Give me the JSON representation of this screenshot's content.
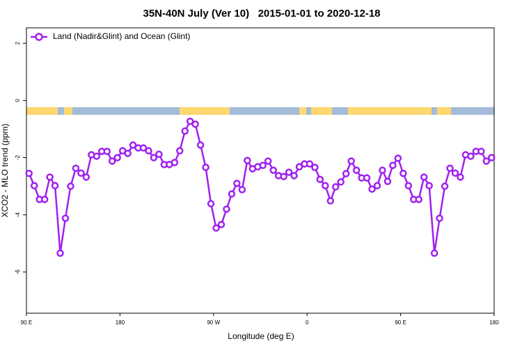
{
  "chart_data": {
    "type": "line",
    "title": "35N-40N July (Ver 10)   2015-01-01 to 2020-12-18",
    "x_label": "Longitude (deg E)",
    "y_label": "XCO2 - MLO trend (ppm)",
    "xlim": [
      90,
      540
    ],
    "xticks": [
      {
        "value": 90,
        "label": "90 E"
      },
      {
        "value": 180,
        "label": "180"
      },
      {
        "value": 270,
        "label": "90 W"
      },
      {
        "value": 360,
        "label": "0"
      },
      {
        "value": 450,
        "label": "90 E"
      },
      {
        "value": 540,
        "label": "180"
      }
    ],
    "ylim": [
      -7.44,
      2.54
    ],
    "yticks": [
      2,
      0,
      -2,
      -4,
      -6
    ],
    "legend": "top-left",
    "x": [
      92.5,
      97.5,
      102.5,
      107.5,
      112.5,
      117.5,
      122.5,
      127.5,
      132.5,
      137.5,
      142.5,
      147.5,
      152.5,
      157.5,
      162.5,
      167.5,
      172.5,
      177.5,
      182.5,
      187.5,
      192.5,
      197.5,
      202.5,
      207.5,
      212.5,
      217.5,
      222.5,
      227.5,
      232.5,
      237.5,
      242.5,
      247.5,
      252.5,
      257.5,
      262.5,
      267.5,
      272.5,
      277.5,
      282.5,
      287.5,
      292.5,
      297.5,
      302.5,
      307.5,
      312.5,
      317.5,
      322.5,
      327.5,
      332.5,
      337.5,
      342.5,
      347.5,
      352.5,
      357.5,
      362.5,
      367.5,
      372.5,
      377.5,
      382.5,
      387.5,
      392.5,
      397.5,
      402.5,
      407.5,
      412.5,
      417.5,
      422.5,
      427.5,
      432.5,
      437.5,
      442.5,
      447.5,
      452.5,
      457.5,
      462.5,
      467.5,
      472.5,
      477.5,
      482.5,
      487.5,
      492.5,
      497.5,
      502.5,
      507.5,
      512.5,
      517.5,
      522.5,
      527.5,
      532.5,
      537.5
    ],
    "series": [
      {
        "name": "Land (Nadir&Glint) and Ocean (Glint)",
        "color": "#a020f0",
        "values": [
          -2.55,
          -2.98,
          -3.46,
          -3.46,
          -2.68,
          -2.98,
          -5.34,
          -4.12,
          -3.0,
          -2.37,
          -2.54,
          -2.68,
          -1.9,
          -1.95,
          -1.78,
          -1.78,
          -2.12,
          -2.0,
          -1.76,
          -1.85,
          -1.56,
          -1.66,
          -1.66,
          -1.76,
          -2.0,
          -1.88,
          -2.24,
          -2.24,
          -2.17,
          -1.76,
          -1.07,
          -0.73,
          -0.83,
          -1.56,
          -2.34,
          -3.61,
          -4.46,
          -4.34,
          -3.8,
          -3.27,
          -2.9,
          -3.12,
          -2.1,
          -2.39,
          -2.32,
          -2.27,
          -2.12,
          -2.44,
          -2.63,
          -2.66,
          -2.51,
          -2.63,
          -2.32,
          -2.22,
          -2.22,
          -2.34,
          -2.76,
          -2.98,
          -3.51,
          -3.02,
          -2.85,
          -2.56,
          -2.12,
          -2.44,
          -2.71,
          -2.71,
          -3.1,
          -2.98,
          -2.44,
          -2.83,
          -2.27,
          -2.02,
          -2.55,
          -2.98,
          -3.46,
          -3.46,
          -2.68,
          -2.98,
          -5.34,
          -4.12,
          -3.0,
          -2.37,
          -2.54,
          -2.68,
          -1.9,
          -1.95,
          -1.78,
          -1.78,
          -2.12,
          -2.0
        ]
      }
    ]
  }
}
